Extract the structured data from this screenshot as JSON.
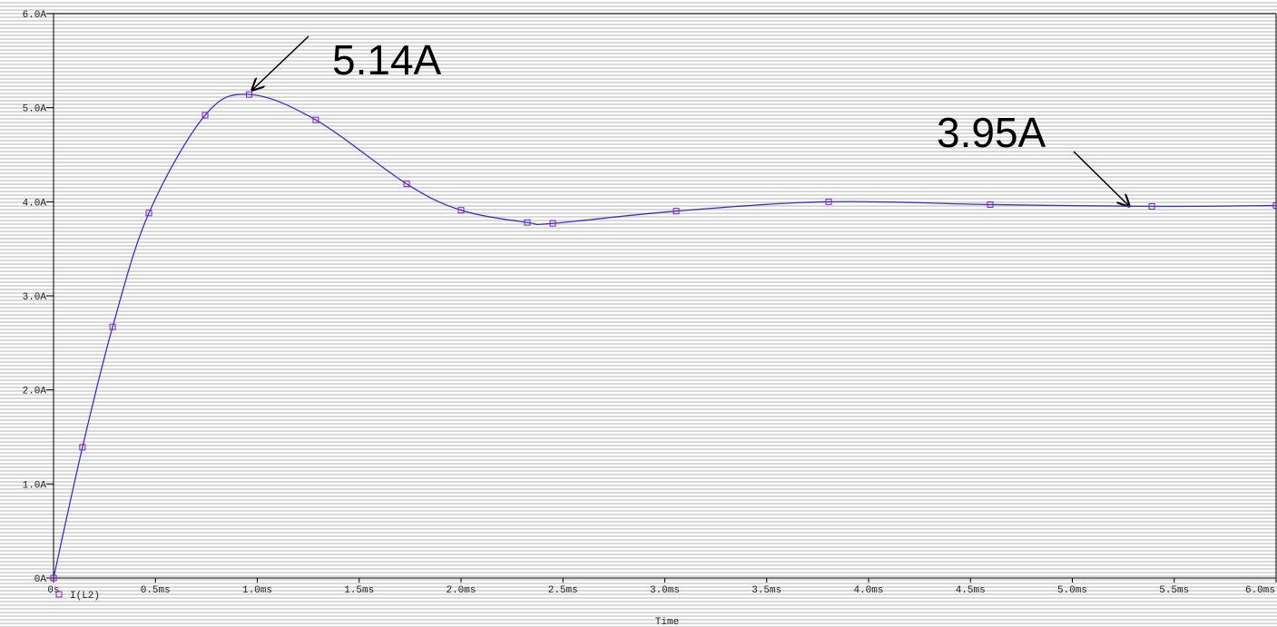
{
  "chart_data": {
    "type": "line",
    "x_label": "Time",
    "x": [
      0,
      0.142,
      0.29,
      0.468,
      0.744,
      0.96,
      1.287,
      1.733,
      2.0,
      2.325,
      2.45,
      3.056,
      3.804,
      4.597,
      5.39,
      6.0
    ],
    "series": [
      {
        "name": "I(L2)",
        "color": "#3c2fd0",
        "marker_color": "#7a1fc8",
        "values": [
          0,
          1.39,
          2.67,
          3.88,
          4.92,
          5.14,
          4.87,
          4.19,
          3.91,
          3.78,
          3.77,
          3.9,
          4.0,
          3.97,
          3.95,
          3.96
        ]
      }
    ],
    "xlim": [
      0,
      6.0
    ],
    "xticks": [
      {
        "value": 0,
        "label": "0s"
      },
      {
        "value": 0.5,
        "label": "0.5ms"
      },
      {
        "value": 1.0,
        "label": "1.0ms"
      },
      {
        "value": 1.5,
        "label": "1.5ms"
      },
      {
        "value": 2.0,
        "label": "2.0ms"
      },
      {
        "value": 2.5,
        "label": "2.5ms"
      },
      {
        "value": 3.0,
        "label": "3.0ms"
      },
      {
        "value": 3.5,
        "label": "3.5ms"
      },
      {
        "value": 4.0,
        "label": "4.0ms"
      },
      {
        "value": 4.5,
        "label": "4.5ms"
      },
      {
        "value": 5.0,
        "label": "5.0ms"
      },
      {
        "value": 5.5,
        "label": "5.5ms"
      },
      {
        "value": 6.0,
        "label": "6.0ms"
      }
    ],
    "ylim": [
      0,
      6.0
    ],
    "yticks": [
      {
        "value": 0,
        "label": "0A"
      },
      {
        "value": 1.0,
        "label": "1.0A"
      },
      {
        "value": 2.0,
        "label": "2.0A"
      },
      {
        "value": 3.0,
        "label": "3.0A"
      },
      {
        "value": 4.0,
        "label": "4.0A"
      },
      {
        "value": 5.0,
        "label": "5.0A"
      },
      {
        "value": 6.0,
        "label": "6.0A"
      }
    ],
    "annotations": [
      {
        "text": "5.14A"
      },
      {
        "text": "3.95A"
      }
    ]
  }
}
